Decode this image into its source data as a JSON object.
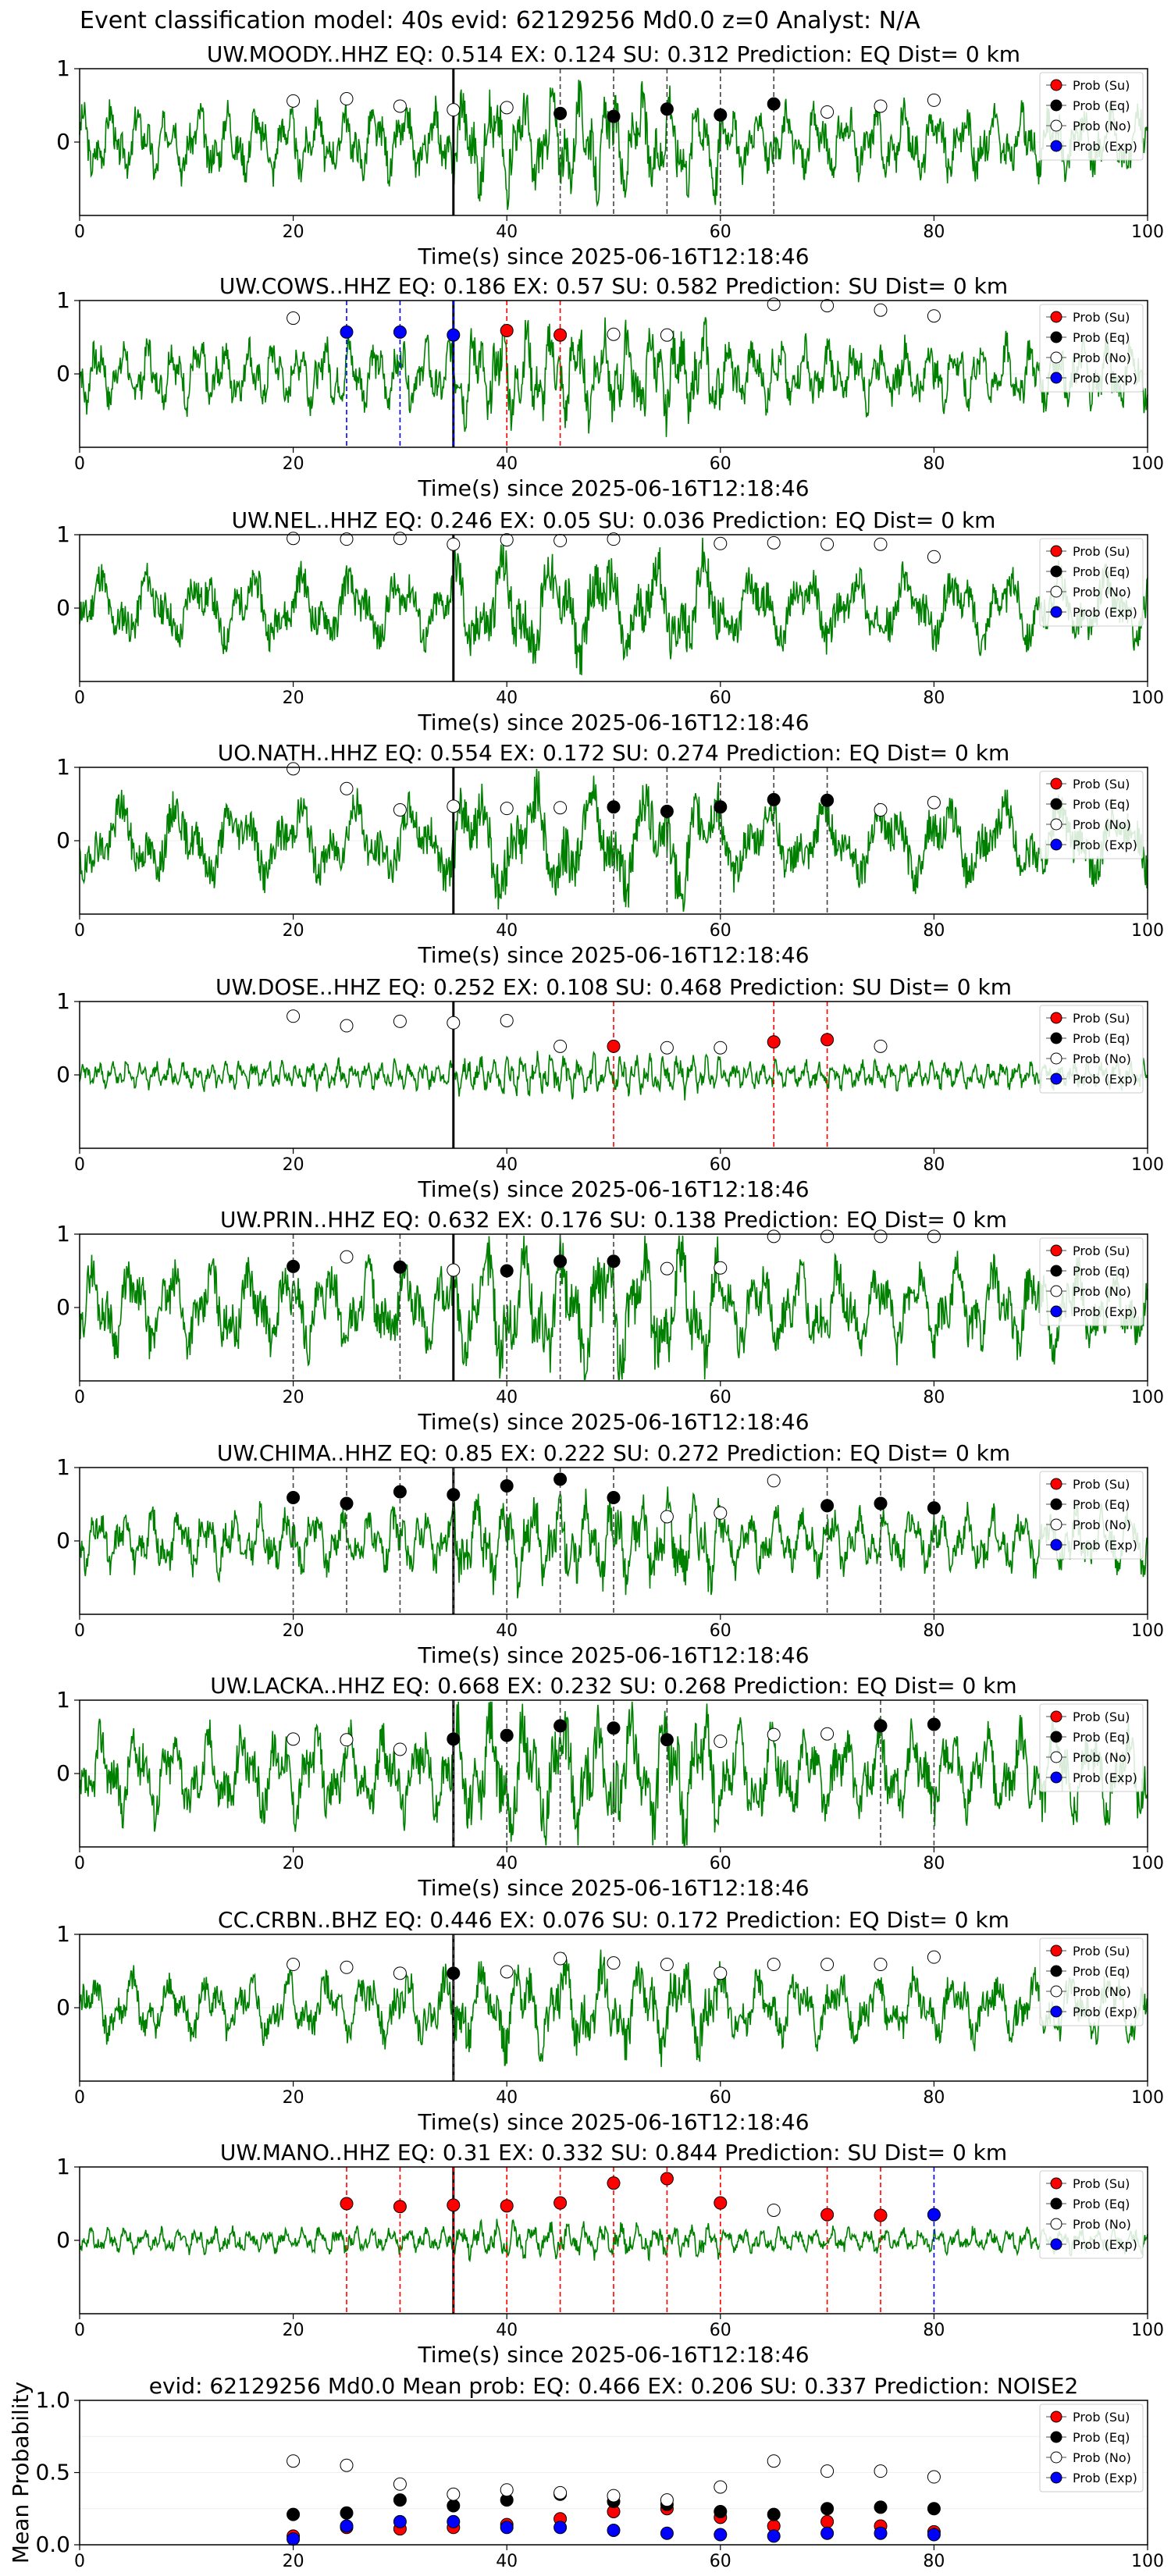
{
  "figure_title": "Event classification model: 40s evid: 62129256 Md0.0 z=0 Analyst: N/A",
  "legend": {
    "entries": [
      "Prob (Su)",
      "Prob (Eq)",
      "Prob (No)",
      "Prob (Exp)"
    ]
  },
  "colors": {
    "su": "#ff0000",
    "eq": "#000000",
    "no": "#ffffff",
    "exp": "#0000ff",
    "trace": "#008000"
  },
  "chart_data": [
    {
      "type": "line",
      "title": "UW.MOODY..HHZ   EQ: 0.514  EX: 0.124  SU: 0.312   Prediction: EQ    Dist= 0 km",
      "xlabel": "Time(s) since 2025-06-16T12:18:46",
      "ylabel": "",
      "xlim": [
        0,
        100
      ],
      "ylim": [
        -1,
        1
      ],
      "xticks": [
        "0",
        "20",
        "40",
        "60",
        "80",
        "100"
      ],
      "yticks": [
        "0",
        "1"
      ],
      "event_marker_x": 35,
      "noise_amp": 0.48,
      "noise_freq": 1.2,
      "seed": 3,
      "points": [
        {
          "x": 20,
          "y": 0.56,
          "c": "no"
        },
        {
          "x": 25,
          "y": 0.59,
          "c": "no"
        },
        {
          "x": 30,
          "y": 0.49,
          "c": "no"
        },
        {
          "x": 35,
          "y": 0.44,
          "c": "no"
        },
        {
          "x": 40,
          "y": 0.47,
          "c": "no"
        },
        {
          "x": 45,
          "y": 0.39,
          "c": "eq"
        },
        {
          "x": 50,
          "y": 0.35,
          "c": "eq"
        },
        {
          "x": 55,
          "y": 0.45,
          "c": "eq"
        },
        {
          "x": 60,
          "y": 0.37,
          "c": "eq"
        },
        {
          "x": 65,
          "y": 0.52,
          "c": "eq"
        },
        {
          "x": 70,
          "y": 0.41,
          "c": "no"
        },
        {
          "x": 75,
          "y": 0.49,
          "c": "no"
        },
        {
          "x": 80,
          "y": 0.57,
          "c": "no"
        }
      ]
    },
    {
      "type": "line",
      "title": "UW.COWS..HHZ   EQ: 0.186  EX: 0.57  SU: 0.582   Prediction: SU    Dist= 0 km",
      "xlabel": "Time(s) since 2025-06-16T12:18:46",
      "ylabel": "",
      "xlim": [
        0,
        100
      ],
      "ylim": [
        -1,
        1
      ],
      "xticks": [
        "0",
        "20",
        "40",
        "60",
        "80",
        "100"
      ],
      "yticks": [
        "0",
        "1"
      ],
      "event_marker_x": 35,
      "noise_amp": 0.45,
      "noise_freq": 1.4,
      "seed": 7,
      "points": [
        {
          "x": 20,
          "y": 0.76,
          "c": "no"
        },
        {
          "x": 25,
          "y": 0.57,
          "c": "exp"
        },
        {
          "x": 30,
          "y": 0.57,
          "c": "exp"
        },
        {
          "x": 35,
          "y": 0.53,
          "c": "exp"
        },
        {
          "x": 40,
          "y": 0.59,
          "c": "su"
        },
        {
          "x": 45,
          "y": 0.53,
          "c": "su"
        },
        {
          "x": 50,
          "y": 0.54,
          "c": "no"
        },
        {
          "x": 55,
          "y": 0.53,
          "c": "no"
        },
        {
          "x": 65,
          "y": 0.95,
          "c": "no"
        },
        {
          "x": 70,
          "y": 0.93,
          "c": "no"
        },
        {
          "x": 75,
          "y": 0.87,
          "c": "no"
        },
        {
          "x": 80,
          "y": 0.79,
          "c": "no"
        }
      ]
    },
    {
      "type": "line",
      "title": "UW.NEL..HHZ   EQ: 0.246  EX: 0.05  SU: 0.036   Prediction: EQ    Dist= 0 km",
      "xlabel": "Time(s) since 2025-06-16T12:18:46",
      "ylabel": "",
      "xlim": [
        0,
        100
      ],
      "ylim": [
        -1,
        1
      ],
      "xticks": [
        "0",
        "20",
        "40",
        "60",
        "80",
        "100"
      ],
      "yticks": [
        "0",
        "1"
      ],
      "event_marker_x": 35,
      "noise_amp": 0.5,
      "noise_freq": 0.7,
      "seed": 11,
      "points": [
        {
          "x": 20,
          "y": 0.95,
          "c": "no"
        },
        {
          "x": 25,
          "y": 0.94,
          "c": "no"
        },
        {
          "x": 30,
          "y": 0.95,
          "c": "no"
        },
        {
          "x": 35,
          "y": 0.87,
          "c": "no"
        },
        {
          "x": 40,
          "y": 0.93,
          "c": "no"
        },
        {
          "x": 45,
          "y": 0.92,
          "c": "no"
        },
        {
          "x": 50,
          "y": 0.94,
          "c": "no"
        },
        {
          "x": 60,
          "y": 0.88,
          "c": "no"
        },
        {
          "x": 65,
          "y": 0.89,
          "c": "no"
        },
        {
          "x": 70,
          "y": 0.87,
          "c": "no"
        },
        {
          "x": 75,
          "y": 0.87,
          "c": "no"
        },
        {
          "x": 80,
          "y": 0.7,
          "c": "no"
        }
      ]
    },
    {
      "type": "line",
      "title": "UO.NATH..HHZ   EQ: 0.554  EX: 0.172  SU: 0.274   Prediction: EQ    Dist= 0 km",
      "xlabel": "Time(s) since 2025-06-16T12:18:46",
      "ylabel": "",
      "xlim": [
        0,
        100
      ],
      "ylim": [
        -1,
        1
      ],
      "xticks": [
        "0",
        "20",
        "40",
        "60",
        "80",
        "100"
      ],
      "yticks": [
        "0",
        "1"
      ],
      "event_marker_x": 35,
      "noise_amp": 0.55,
      "noise_freq": 0.6,
      "seed": 19,
      "points": [
        {
          "x": 20,
          "y": 0.98,
          "c": "no"
        },
        {
          "x": 25,
          "y": 0.71,
          "c": "no"
        },
        {
          "x": 30,
          "y": 0.42,
          "c": "no"
        },
        {
          "x": 35,
          "y": 0.47,
          "c": "no"
        },
        {
          "x": 40,
          "y": 0.44,
          "c": "no"
        },
        {
          "x": 45,
          "y": 0.45,
          "c": "no"
        },
        {
          "x": 50,
          "y": 0.46,
          "c": "eq"
        },
        {
          "x": 55,
          "y": 0.4,
          "c": "eq"
        },
        {
          "x": 60,
          "y": 0.46,
          "c": "eq"
        },
        {
          "x": 65,
          "y": 0.56,
          "c": "eq"
        },
        {
          "x": 70,
          "y": 0.55,
          "c": "eq"
        },
        {
          "x": 75,
          "y": 0.42,
          "c": "no"
        },
        {
          "x": 80,
          "y": 0.52,
          "c": "no"
        }
      ]
    },
    {
      "type": "line",
      "title": "UW.DOSE..HHZ   EQ: 0.252  EX: 0.108  SU: 0.468   Prediction: SU    Dist= 0 km",
      "xlabel": "Time(s) since 2025-06-16T12:18:46",
      "ylabel": "",
      "xlim": [
        0,
        100
      ],
      "ylim": [
        -1,
        1
      ],
      "xticks": [
        "0",
        "20",
        "40",
        "60",
        "80",
        "100"
      ],
      "yticks": [
        "0",
        "1"
      ],
      "event_marker_x": 35,
      "noise_amp": 0.18,
      "noise_freq": 2.5,
      "seed": 23,
      "points": [
        {
          "x": 20,
          "y": 0.8,
          "c": "no"
        },
        {
          "x": 25,
          "y": 0.67,
          "c": "no"
        },
        {
          "x": 30,
          "y": 0.73,
          "c": "no"
        },
        {
          "x": 35,
          "y": 0.71,
          "c": "no"
        },
        {
          "x": 40,
          "y": 0.74,
          "c": "no"
        },
        {
          "x": 45,
          "y": 0.39,
          "c": "no"
        },
        {
          "x": 50,
          "y": 0.39,
          "c": "su"
        },
        {
          "x": 55,
          "y": 0.37,
          "c": "no"
        },
        {
          "x": 60,
          "y": 0.37,
          "c": "no"
        },
        {
          "x": 65,
          "y": 0.45,
          "c": "su"
        },
        {
          "x": 70,
          "y": 0.48,
          "c": "su"
        },
        {
          "x": 75,
          "y": 0.39,
          "c": "no"
        }
      ]
    },
    {
      "type": "line",
      "title": "UW.PRIN..HHZ   EQ: 0.632  EX: 0.176  SU: 0.138   Prediction: EQ    Dist= 0 km",
      "xlabel": "Time(s) since 2025-06-16T12:18:46",
      "ylabel": "",
      "xlim": [
        0,
        100
      ],
      "ylim": [
        -1,
        1
      ],
      "xticks": [
        "0",
        "20",
        "40",
        "60",
        "80",
        "100"
      ],
      "yticks": [
        "0",
        "1"
      ],
      "event_marker_x": 35,
      "noise_amp": 0.6,
      "noise_freq": 0.9,
      "seed": 29,
      "points": [
        {
          "x": 20,
          "y": 0.56,
          "c": "eq"
        },
        {
          "x": 25,
          "y": 0.69,
          "c": "no"
        },
        {
          "x": 30,
          "y": 0.55,
          "c": "eq"
        },
        {
          "x": 35,
          "y": 0.51,
          "c": "no"
        },
        {
          "x": 40,
          "y": 0.5,
          "c": "eq"
        },
        {
          "x": 45,
          "y": 0.63,
          "c": "eq"
        },
        {
          "x": 50,
          "y": 0.63,
          "c": "eq"
        },
        {
          "x": 55,
          "y": 0.53,
          "c": "no"
        },
        {
          "x": 60,
          "y": 0.54,
          "c": "no"
        },
        {
          "x": 65,
          "y": 0.97,
          "c": "no"
        },
        {
          "x": 70,
          "y": 0.97,
          "c": "no"
        },
        {
          "x": 75,
          "y": 0.97,
          "c": "no"
        },
        {
          "x": 80,
          "y": 0.97,
          "c": "no"
        }
      ]
    },
    {
      "type": "line",
      "title": "UW.CHIMA..HHZ   EQ: 0.85  EX: 0.222  SU: 0.272   Prediction: EQ    Dist= 0 km",
      "xlabel": "Time(s) since 2025-06-16T12:18:46",
      "ylabel": "",
      "xlim": [
        0,
        100
      ],
      "ylim": [
        -1,
        1
      ],
      "xticks": [
        "0",
        "20",
        "40",
        "60",
        "80",
        "100"
      ],
      "yticks": [
        "0",
        "1"
      ],
      "event_marker_x": 35,
      "noise_amp": 0.42,
      "noise_freq": 1.3,
      "seed": 31,
      "points": [
        {
          "x": 20,
          "y": 0.59,
          "c": "eq"
        },
        {
          "x": 25,
          "y": 0.51,
          "c": "eq"
        },
        {
          "x": 30,
          "y": 0.67,
          "c": "eq"
        },
        {
          "x": 35,
          "y": 0.63,
          "c": "eq"
        },
        {
          "x": 40,
          "y": 0.75,
          "c": "eq"
        },
        {
          "x": 45,
          "y": 0.84,
          "c": "eq"
        },
        {
          "x": 50,
          "y": 0.59,
          "c": "eq"
        },
        {
          "x": 55,
          "y": 0.33,
          "c": "no"
        },
        {
          "x": 60,
          "y": 0.38,
          "c": "no"
        },
        {
          "x": 65,
          "y": 0.82,
          "c": "no"
        },
        {
          "x": 70,
          "y": 0.48,
          "c": "eq"
        },
        {
          "x": 75,
          "y": 0.51,
          "c": "eq"
        },
        {
          "x": 80,
          "y": 0.45,
          "c": "eq"
        }
      ]
    },
    {
      "type": "line",
      "title": "UW.LACKA..HHZ   EQ: 0.668  EX: 0.232  SU: 0.268   Prediction: EQ    Dist= 0 km",
      "xlabel": "Time(s) since 2025-06-16T12:18:46",
      "ylabel": "",
      "xlim": [
        0,
        100
      ],
      "ylim": [
        -1,
        1
      ],
      "xticks": [
        "0",
        "20",
        "40",
        "60",
        "80",
        "100"
      ],
      "yticks": [
        "0",
        "1"
      ],
      "event_marker_x": 35,
      "noise_amp": 0.6,
      "noise_freq": 1.0,
      "seed": 37,
      "points": [
        {
          "x": 20,
          "y": 0.47,
          "c": "no"
        },
        {
          "x": 25,
          "y": 0.46,
          "c": "no"
        },
        {
          "x": 30,
          "y": 0.33,
          "c": "no"
        },
        {
          "x": 35,
          "y": 0.47,
          "c": "eq"
        },
        {
          "x": 40,
          "y": 0.52,
          "c": "eq"
        },
        {
          "x": 45,
          "y": 0.65,
          "c": "eq"
        },
        {
          "x": 50,
          "y": 0.62,
          "c": "eq"
        },
        {
          "x": 55,
          "y": 0.46,
          "c": "eq"
        },
        {
          "x": 60,
          "y": 0.44,
          "c": "no"
        },
        {
          "x": 65,
          "y": 0.53,
          "c": "no"
        },
        {
          "x": 70,
          "y": 0.54,
          "c": "no"
        },
        {
          "x": 75,
          "y": 0.65,
          "c": "eq"
        },
        {
          "x": 80,
          "y": 0.67,
          "c": "eq"
        }
      ]
    },
    {
      "type": "line",
      "title": "CC.CRBN..BHZ   EQ: 0.446  EX: 0.076  SU: 0.172   Prediction: EQ    Dist= 0 km",
      "xlabel": "Time(s) since 2025-06-16T12:18:46",
      "ylabel": "",
      "xlim": [
        0,
        100
      ],
      "ylim": [
        -1,
        1
      ],
      "xticks": [
        "0",
        "20",
        "40",
        "60",
        "80",
        "100"
      ],
      "yticks": [
        "0",
        "1"
      ],
      "event_marker_x": 35,
      "noise_amp": 0.45,
      "noise_freq": 0.9,
      "seed": 41,
      "points": [
        {
          "x": 20,
          "y": 0.59,
          "c": "no"
        },
        {
          "x": 25,
          "y": 0.55,
          "c": "no"
        },
        {
          "x": 30,
          "y": 0.47,
          "c": "no"
        },
        {
          "x": 35,
          "y": 0.47,
          "c": "eq"
        },
        {
          "x": 40,
          "y": 0.49,
          "c": "no"
        },
        {
          "x": 45,
          "y": 0.67,
          "c": "no"
        },
        {
          "x": 50,
          "y": 0.61,
          "c": "no"
        },
        {
          "x": 55,
          "y": 0.59,
          "c": "no"
        },
        {
          "x": 60,
          "y": 0.47,
          "c": "no"
        },
        {
          "x": 65,
          "y": 0.59,
          "c": "no"
        },
        {
          "x": 70,
          "y": 0.59,
          "c": "no"
        },
        {
          "x": 75,
          "y": 0.59,
          "c": "no"
        },
        {
          "x": 80,
          "y": 0.69,
          "c": "no"
        }
      ]
    },
    {
      "type": "line",
      "title": "UW.MANO..HHZ   EQ: 0.31  EX: 0.332  SU: 0.844   Prediction: SU    Dist= 0 km",
      "xlabel": "Time(s) since 2025-06-16T12:18:46",
      "ylabel": "",
      "xlim": [
        0,
        100
      ],
      "ylim": [
        -1,
        1
      ],
      "xticks": [
        "0",
        "20",
        "40",
        "60",
        "80",
        "100"
      ],
      "yticks": [
        "0",
        "1"
      ],
      "event_marker_x": 35,
      "noise_amp": 0.16,
      "noise_freq": 2.0,
      "seed": 43,
      "points": [
        {
          "x": 25,
          "y": 0.5,
          "c": "su"
        },
        {
          "x": 30,
          "y": 0.46,
          "c": "su"
        },
        {
          "x": 35,
          "y": 0.48,
          "c": "su"
        },
        {
          "x": 40,
          "y": 0.47,
          "c": "su"
        },
        {
          "x": 45,
          "y": 0.51,
          "c": "su"
        },
        {
          "x": 50,
          "y": 0.78,
          "c": "su"
        },
        {
          "x": 55,
          "y": 0.84,
          "c": "su"
        },
        {
          "x": 60,
          "y": 0.51,
          "c": "su"
        },
        {
          "x": 65,
          "y": 0.41,
          "c": "no"
        },
        {
          "x": 70,
          "y": 0.35,
          "c": "su"
        },
        {
          "x": 75,
          "y": 0.34,
          "c": "su"
        },
        {
          "x": 80,
          "y": 0.35,
          "c": "exp"
        }
      ]
    },
    {
      "type": "scatter",
      "title": "evid: 62129256  Md0.0   Mean prob:   EQ: 0.466  EX: 0.206  SU: 0.337   Prediction: NOISE2",
      "xlabel": "",
      "ylabel": "Mean Probability",
      "xlim": [
        0,
        100
      ],
      "ylim": [
        0,
        1
      ],
      "xticks": [
        "0",
        "20",
        "40",
        "60",
        "80",
        "100"
      ],
      "yticks": [
        "0.0",
        "0.5",
        "1.0"
      ],
      "series": [
        {
          "name": "Prob (Su)",
          "c": "su",
          "x": [
            20,
            25,
            30,
            35,
            40,
            45,
            50,
            55,
            60,
            65,
            70,
            75,
            80
          ],
          "y": [
            0.06,
            0.12,
            0.11,
            0.12,
            0.14,
            0.18,
            0.23,
            0.25,
            0.19,
            0.13,
            0.16,
            0.13,
            0.09
          ]
        },
        {
          "name": "Prob (Eq)",
          "c": "eq",
          "x": [
            20,
            25,
            30,
            35,
            40,
            45,
            50,
            55,
            60,
            65,
            70,
            75,
            80
          ],
          "y": [
            0.21,
            0.22,
            0.31,
            0.27,
            0.31,
            0.35,
            0.3,
            0.28,
            0.23,
            0.21,
            0.25,
            0.26,
            0.25
          ]
        },
        {
          "name": "Prob (No)",
          "c": "no",
          "x": [
            20,
            25,
            30,
            35,
            40,
            45,
            50,
            55,
            60,
            65,
            70,
            75,
            80
          ],
          "y": [
            0.58,
            0.55,
            0.42,
            0.35,
            0.38,
            0.36,
            0.34,
            0.31,
            0.4,
            0.58,
            0.51,
            0.51,
            0.47
          ]
        },
        {
          "name": "Prob (Exp)",
          "c": "exp",
          "x": [
            20,
            25,
            30,
            35,
            40,
            45,
            50,
            55,
            60,
            65,
            70,
            75,
            80
          ],
          "y": [
            0.04,
            0.13,
            0.16,
            0.16,
            0.12,
            0.12,
            0.1,
            0.08,
            0.07,
            0.06,
            0.08,
            0.08,
            0.07
          ]
        }
      ]
    }
  ]
}
